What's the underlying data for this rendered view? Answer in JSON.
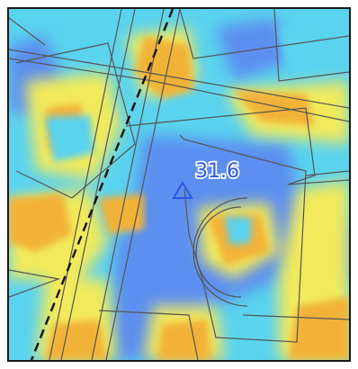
{
  "map": {
    "label_value": "31.6",
    "marker_icon": "triangle-marker-icon",
    "colors": {
      "cool": "#5b8ff0",
      "mid": "#5ad3ef",
      "warm": "#f2ea5c",
      "hot": "#f2b238",
      "lines": "#555555",
      "rail": "#111111",
      "marker": "#2d56e6",
      "label_fill": "#2d56e6",
      "label_stroke": "#ffffff"
    }
  }
}
